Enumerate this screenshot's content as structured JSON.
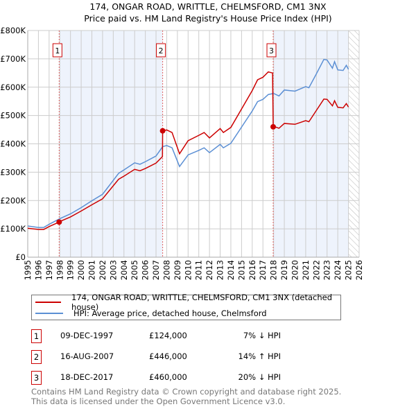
{
  "chart_data": {
    "type": "line",
    "title": "174, ONGAR ROAD, WRITTLE, CHELMSFORD, CM1 3NX",
    "subtitle": "Price paid vs. HM Land Registry's House Price Index (HPI)",
    "xlim": [
      1995,
      2026
    ],
    "ylim": [
      0,
      800000
    ],
    "x_ticks": [
      "1995",
      "1996",
      "1997",
      "1998",
      "1999",
      "2000",
      "2001",
      "2002",
      "2003",
      "2004",
      "2005",
      "2006",
      "2007",
      "2008",
      "2009",
      "2010",
      "2011",
      "2012",
      "2013",
      "2014",
      "2015",
      "2016",
      "2017",
      "2018",
      "2019",
      "2020",
      "2021",
      "2022",
      "2023",
      "2024",
      "2025",
      "2026"
    ],
    "y_ticks": [
      {
        "v": 0,
        "label": "£0"
      },
      {
        "v": 100000,
        "label": "£100K"
      },
      {
        "v": 200000,
        "label": "£200K"
      },
      {
        "v": 300000,
        "label": "£300K"
      },
      {
        "v": 400000,
        "label": "£400K"
      },
      {
        "v": 500000,
        "label": "£500K"
      },
      {
        "v": 600000,
        "label": "£600K"
      },
      {
        "v": 700000,
        "label": "£700K"
      },
      {
        "v": 800000,
        "label": "£800K"
      }
    ],
    "grid": true,
    "series": [
      {
        "name": "174, ONGAR ROAD, WRITTLE, CHELMSFORD, CM1 3NX (detached house)",
        "color": "#cc0000",
        "x": [
          1995,
          1996,
          1996.5,
          1997,
          1997.94,
          1998,
          1999,
          2000,
          2001,
          2002,
          2003,
          2003.5,
          2004,
          2005,
          2005.5,
          2006,
          2007,
          2007.6,
          2007.62,
          2008,
          2008.5,
          2009.2,
          2010,
          2011,
          2011.5,
          2012,
          2013,
          2013.3,
          2014,
          2015,
          2016,
          2016.5,
          2017,
          2017.5,
          2017.9,
          2017.96,
          2018,
          2018.5,
          2019,
          2020,
          2021,
          2021.3,
          2022,
          2022.7,
          2023,
          2023.5,
          2023.7,
          2024,
          2024.5,
          2024.8,
          2025
        ],
        "values": [
          102000,
          98000,
          98000,
          108000,
          124000,
          126000,
          142000,
          163000,
          185000,
          206000,
          252000,
          275000,
          286000,
          310000,
          305000,
          313000,
          332000,
          355000,
          446000,
          449000,
          440000,
          365000,
          411000,
          430000,
          440000,
          421000,
          454000,
          440000,
          458000,
          523000,
          588000,
          626000,
          635000,
          654000,
          650000,
          460000,
          462000,
          455000,
          472000,
          469000,
          482000,
          478000,
          518000,
          558000,
          557000,
          534000,
          552000,
          529000,
          527000,
          542000,
          530000
        ]
      },
      {
        "name": "HPI: Average price, detached house, Chelmsford",
        "color": "#5b8fd4",
        "x": [
          1995,
          1996,
          1996.5,
          1997,
          1998,
          1999,
          2000,
          2001,
          2002,
          2003,
          2003.5,
          2004,
          2005,
          2005.5,
          2006,
          2007,
          2007.62,
          2008,
          2008.5,
          2009.2,
          2010,
          2011,
          2011.5,
          2012,
          2013,
          2013.3,
          2014,
          2015,
          2016,
          2016.5,
          2017,
          2017.5,
          2018,
          2018.5,
          2019,
          2020,
          2021,
          2021.3,
          2022,
          2022.7,
          2023,
          2023.5,
          2023.7,
          2024,
          2024.5,
          2024.8,
          2025
        ],
        "values": [
          110000,
          105000,
          105000,
          116000,
          136000,
          153000,
          175000,
          199000,
          222000,
          271000,
          296000,
          308000,
          333000,
          328000,
          337000,
          357000,
          390000,
          394000,
          386000,
          320000,
          361000,
          377000,
          386000,
          369000,
          398000,
          386000,
          402000,
          459000,
          516000,
          549000,
          557000,
          574000,
          578000,
          569000,
          590000,
          586000,
          602000,
          598000,
          647000,
          698000,
          696000,
          667000,
          690000,
          661000,
          659000,
          677000,
          663000
        ]
      }
    ],
    "sales": [
      {
        "label": "1",
        "x": 1997.94,
        "value": 124000,
        "date": "09-DEC-1997",
        "price": "£124,000",
        "hpi": "7% ↓ HPI"
      },
      {
        "label": "2",
        "x": 2007.62,
        "value": 446000,
        "date": "16-AUG-2007",
        "price": "£446,000",
        "hpi": "14% ↑ HPI"
      },
      {
        "label": "3",
        "x": 2017.96,
        "value": 460000,
        "date": "18-DEC-2017",
        "price": "£460,000",
        "hpi": "20% ↓ HPI"
      }
    ],
    "shaded_ranges": [
      [
        1997.94,
        2007.62
      ],
      [
        2017.96,
        2025.0
      ]
    ],
    "forecast_hatch_from": 2025.0,
    "legend_placement": "below"
  },
  "footer": [
    "Contains HM Land Registry data © Crown copyright and database right 2025.",
    "This data is licensed under the Open Government Licence v3.0."
  ]
}
